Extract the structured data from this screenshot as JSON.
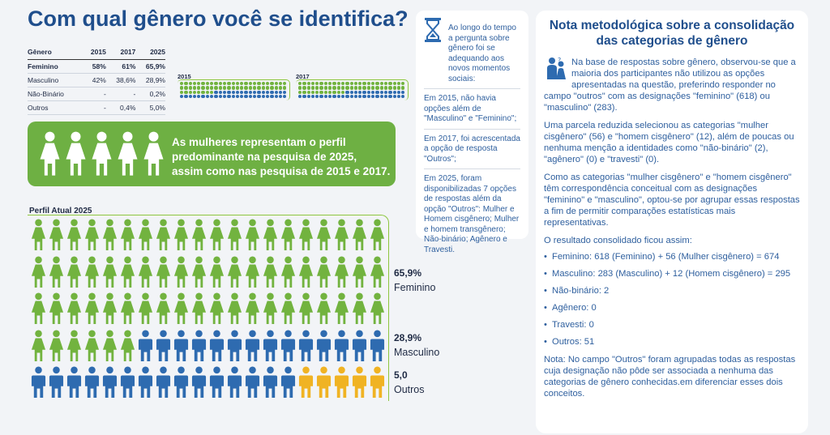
{
  "title": "Com qual gênero você se identifica?",
  "table": {
    "headers": [
      "Gênero",
      "2015",
      "2017",
      "2025"
    ],
    "rows": [
      {
        "label": "Feminino",
        "v2015": "58%",
        "v2017": "61%",
        "v2025": "65,9%",
        "highlight": true
      },
      {
        "label": "Masculino",
        "v2015": "42%",
        "v2017": "38,6%",
        "v2025": "28,9%",
        "highlight": false
      },
      {
        "label": "Não-Binário",
        "v2015": "-",
        "v2017": "-",
        "v2025": "0,2%",
        "highlight": false
      },
      {
        "label": "Outros",
        "v2015": "-",
        "v2017": "0,4%",
        "v2025": "5,0%",
        "highlight": false
      }
    ]
  },
  "mini_charts": [
    {
      "label": "2015",
      "green": 58,
      "blue": 42,
      "orange": 0
    },
    {
      "label": "2017",
      "green": 61,
      "blue": 39,
      "orange": 0
    }
  ],
  "banner_text": "As mulheres representam o perfil predominante na pesquisa de 2025, assim como nas pesquisa de 2015 e 2017.",
  "perfil_label": "Perfil Atual 2025",
  "pictogram": {
    "green": 66,
    "blue": 29,
    "orange": 5
  },
  "stats": [
    {
      "pct": "65,9%",
      "name": "Feminino"
    },
    {
      "pct": "28,9%",
      "name": "Masculino"
    },
    {
      "pct": "5,0",
      "name": "Outros"
    }
  ],
  "colors": {
    "green": "#72b33f",
    "blue": "#2e6bb0",
    "orange": "#f0b323",
    "title": "#1f4e8c"
  },
  "timeline": {
    "intro": "Ao longo do tempo a pergunta sobre gênero foi se adequando aos novos momentos sociais:",
    "items": [
      "Em 2015, não havia opções além de \"Masculino\" e \"Feminino\";",
      "Em 2017, foi acrescentada a opção de resposta \"Outros\";",
      "Em 2025, foram disponibilizadas 7 opções de respostas além da opção \"Outros\":  Mulher e Homem cisgênero; Mulher e homem transgênero; Não-binário; Agênero e Travesti."
    ]
  },
  "note": {
    "title": "Nota metodológica sobre a consolidação das categorias de gênero",
    "p1": "Na base de respostas sobre gênero, observou-se que a maioria dos participantes não utilizou as opções apresentadas na questão, preferindo responder no campo \"outros\" com as designações \"feminino\" (618) ou \"masculino\" (283).",
    "p2": "Uma parcela reduzida selecionou as categorias \"mulher cisgênero\" (56) e \"homem cisgênero\" (12), além de poucas ou nenhuma menção a identidades como \"não-binário\" (2), \"agênero\" (0) e \"travesti\" (0).",
    "p3": "Como as categorias \"mulher cisgênero\" e \"homem cisgênero\" têm correspondência conceitual com as designações \"feminino\" e \"masculino\", optou-se por agrupar essas respostas a fim de permitir comparações estatísticas mais representativas.",
    "p4": "O resultado consolidado ficou assim:",
    "list": [
      "Feminino: 618 (Feminino) + 56 (Mulher cisgênero) = 674",
      "Masculino: 283 (Masculino) + 12 (Homem cisgênero) = 295",
      "Não-binário: 2",
      "Agênero: 0",
      "Travesti: 0",
      "Outros: 51"
    ],
    "footer": "Nota: No campo \"Outros\" foram agrupadas todas as respostas cuja designação não pôde ser associada a nenhuma das categorias de gênero conhecidas.em diferenciar esses dois conceitos."
  }
}
